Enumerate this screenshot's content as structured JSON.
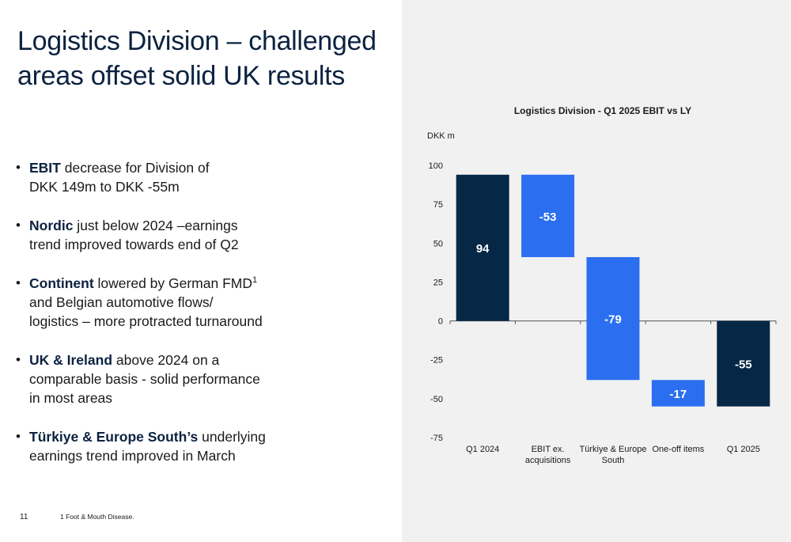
{
  "slide": {
    "title": "Logistics Division – challenged areas offset solid UK results",
    "page_number": "11",
    "footnote": "1 Foot & Mouth Disease."
  },
  "bullets": [
    {
      "lines": [
        [
          {
            "b": "EBIT"
          },
          {
            "t": " decrease for Division of"
          }
        ],
        [
          {
            "t": "DKK 149m to DKK -55m"
          }
        ]
      ]
    },
    {
      "lines": [
        [
          {
            "b": "Nordic"
          },
          {
            "t": " just below 2024 –earnings"
          }
        ],
        [
          {
            "t": "trend improved towards end of Q2"
          }
        ]
      ]
    },
    {
      "lines": [
        [
          {
            "b": "Continent"
          },
          {
            "t": " lowered by German FMD"
          },
          {
            "sup": "1"
          }
        ],
        [
          {
            "t": "and Belgian automotive flows/"
          }
        ],
        [
          {
            "t": "logistics – more protracted turnaround"
          }
        ]
      ]
    },
    {
      "lines": [
        [
          {
            "b": "UK & Ireland"
          },
          {
            "t": " above 2024 on a"
          }
        ],
        [
          {
            "t": "comparable basis - solid performance"
          }
        ],
        [
          {
            "t": "in most areas"
          }
        ]
      ]
    },
    {
      "lines": [
        [
          {
            "b": "Türkiye & Europe South’s"
          },
          {
            "t": " underlying"
          }
        ],
        [
          {
            "t": "earnings trend improved in March"
          }
        ]
      ]
    }
  ],
  "chart_data": {
    "type": "bar",
    "subtype": "waterfall",
    "title": "Logistics Division - Q1 2025 EBIT vs LY",
    "ylabel": "DKK m",
    "ylim": [
      -75,
      100
    ],
    "yticks": [
      100,
      75,
      50,
      25,
      0,
      -25,
      -50,
      -75
    ],
    "categories": [
      "Q1 2024",
      "EBIT ex. acquisitions",
      "Türkiye & Europe South",
      "One-off items",
      "Q1 2025"
    ],
    "category_lines": [
      [
        "Q1 2024"
      ],
      [
        "EBIT ex.",
        "acquisitions"
      ],
      [
        "Türkiye & Europe",
        "South"
      ],
      [
        "One-off items"
      ],
      [
        "Q1 2025"
      ]
    ],
    "values": [
      94,
      -53,
      -79,
      -17,
      -55
    ],
    "labels": [
      "94",
      "-53",
      "-79",
      "-17",
      "-55"
    ],
    "kinds": [
      "total",
      "delta",
      "delta",
      "delta",
      "total"
    ],
    "colors": {
      "total": "#062846",
      "delta": "#2b6ff0",
      "label": "#ffffff",
      "axis": "#555555"
    }
  }
}
